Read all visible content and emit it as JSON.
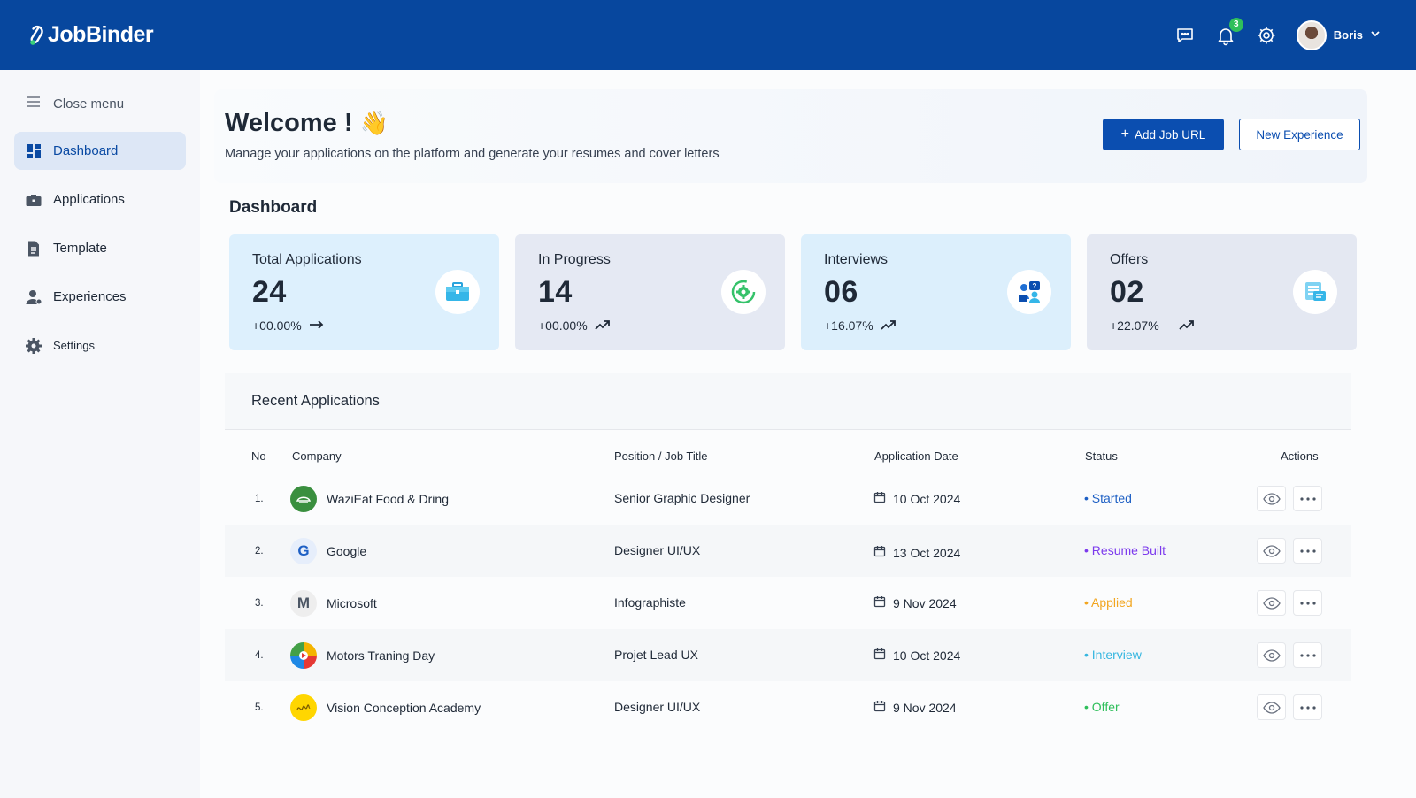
{
  "app": {
    "name": "JobBinder"
  },
  "topbar": {
    "notification_count": "3",
    "user_name": "Boris"
  },
  "sidebar": {
    "close_menu": "Close menu",
    "items": [
      {
        "label": "Dashboard",
        "icon": "dashboard-icon",
        "active": true
      },
      {
        "label": "Applications",
        "icon": "briefcase-icon"
      },
      {
        "label": "Template",
        "icon": "document-icon"
      },
      {
        "label": "Experiences",
        "icon": "user-icon"
      },
      {
        "label": "Settings",
        "icon": "gear-icon"
      }
    ]
  },
  "welcome": {
    "title": "Welcome !",
    "emoji": "👋",
    "subtitle": "Manage your applications on the platform and generate your resumes and cover letters",
    "add_job_label": "Add Job URL",
    "new_experience_label": "New Experience"
  },
  "dashboard": {
    "title": "Dashboard",
    "cards": [
      {
        "label": "Total Applications",
        "value": "24",
        "trend": "+00.00%",
        "icon": "briefcase-icon"
      },
      {
        "label": "In Progress",
        "value": "14",
        "trend": "+00.00%",
        "icon": "progress-gear-icon"
      },
      {
        "label": "Interviews",
        "value": "06",
        "trend": "+16.07%",
        "icon": "interview-icon"
      },
      {
        "label": "Offers",
        "value": "02",
        "trend": "+22.07%",
        "icon": "offer-icon"
      }
    ]
  },
  "recent": {
    "title": "Recent Applications",
    "columns": [
      "No",
      "Company",
      "Position / Job Title",
      "Application Date",
      "Status",
      "Actions"
    ],
    "rows": [
      {
        "no": "1.",
        "company": "WaziEat Food & Dring",
        "position": "Senior Graphic Designer",
        "date": "10 Oct 2024",
        "status": "• Started",
        "status_color": "#1d5fc4",
        "logo_text": "",
        "logo_bg": "#3a8f3f"
      },
      {
        "no": "2.",
        "company": "Google",
        "position": "Designer UI/UX",
        "date": "13 Oct 2024",
        "status": "• Resume Built",
        "status_color": "#7c3aed",
        "logo_text": "G",
        "logo_bg": "#e6eefb"
      },
      {
        "no": "3.",
        "company": "Microsoft",
        "position": "Infographiste",
        "date": "9 Nov 2024",
        "status": "• Applied",
        "status_color": "#f2a51e",
        "logo_text": "M",
        "logo_bg": "#eeeeee"
      },
      {
        "no": "4.",
        "company": "Motors Traning Day",
        "position": "Projet Lead UX",
        "date": "10 Oct 2024",
        "status": "• Interview",
        "status_color": "#35b6e0",
        "logo_text": "",
        "logo_bg": "#f4b400"
      },
      {
        "no": "5.",
        "company": "Vision Conception Academy",
        "position": "Designer UI/UX",
        "date": "9 Nov 2024",
        "status": "• Offer",
        "status_color": "#2fbf5b",
        "logo_text": "",
        "logo_bg": "#ffd600"
      }
    ]
  }
}
